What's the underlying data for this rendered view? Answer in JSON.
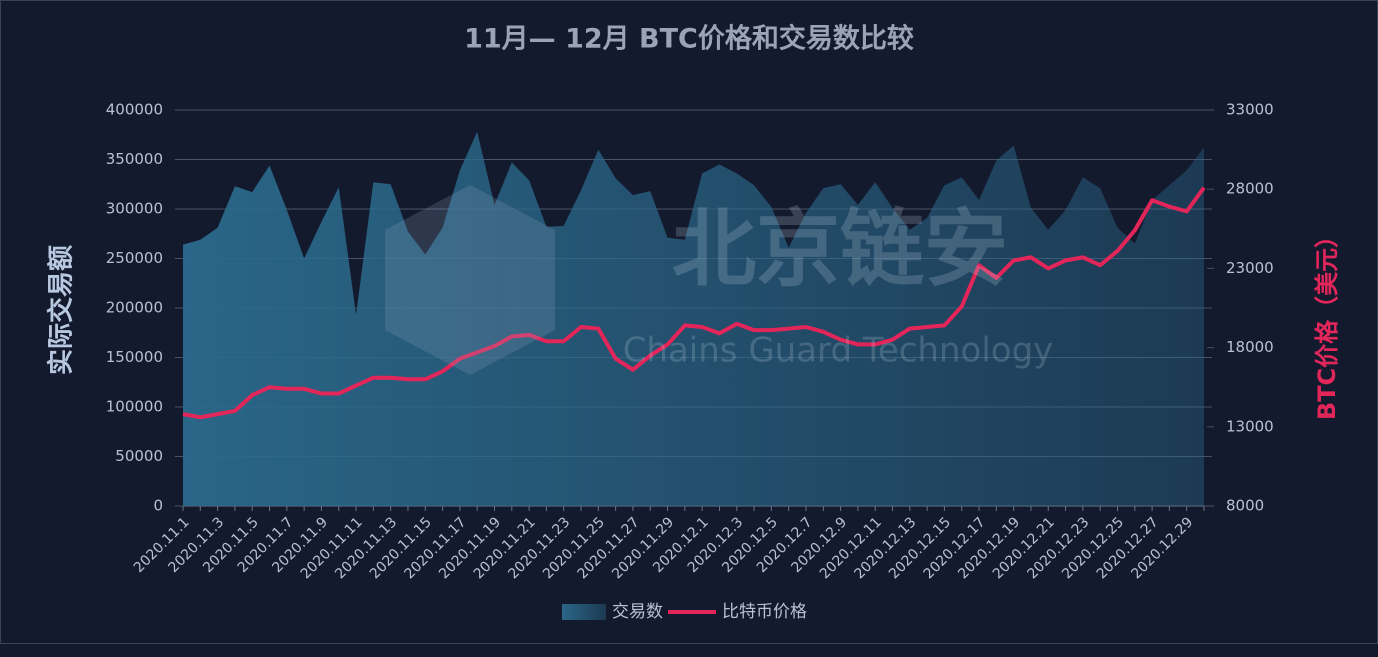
{
  "chart_data": {
    "type": "area-line",
    "title": "11月— 12月 BTC价格和交易数比较",
    "y_label": "实际交易额",
    "y2_label": "BTC价格（美元）",
    "watermark": {
      "title": "北京链安",
      "subtitle": "Chains Guard Technology"
    },
    "categories": [
      "2020.11.1",
      null,
      "2020.11.3",
      null,
      "2020.11.5",
      null,
      "2020.11.7",
      null,
      "2020.11.9",
      null,
      "2020.11.11",
      null,
      "2020.11.13",
      null,
      "2020.11.15",
      null,
      "2020.11.17",
      null,
      "2020.11.19",
      null,
      "2020.11.21",
      null,
      "2020.11.23",
      null,
      "2020.11.25",
      null,
      "2020.11.27",
      null,
      "2020.11.29",
      null,
      "2020.12.1",
      null,
      "2020.12.3",
      null,
      "2020.12.5",
      null,
      "2020.12.7",
      null,
      "2020.12.9",
      null,
      "2020.12.11",
      null,
      "2020.12.13",
      null,
      "2020.12.15",
      null,
      "2020.12.17",
      null,
      "2020.12.19",
      null,
      "2020.12.21",
      null,
      "2020.12.23",
      null,
      "2020.12.25",
      null,
      "2020.12.27",
      null,
      "2020.12.29",
      null
    ],
    "series": [
      {
        "name": "交易数",
        "color": "#2b6a8c",
        "type": "area",
        "values": [
          264000,
          269000,
          281000,
          323000,
          317000,
          344000,
          299000,
          250000,
          287000,
          322000,
          193000,
          327000,
          325000,
          277000,
          254000,
          281000,
          339000,
          378000,
          304000,
          347000,
          329000,
          282000,
          283000,
          319000,
          360000,
          331000,
          314000,
          318000,
          271000,
          269000,
          336000,
          345000,
          336000,
          324000,
          302000,
          261000,
          296000,
          321000,
          325000,
          304000,
          327000,
          301000,
          279000,
          291000,
          324000,
          332000,
          309000,
          349000,
          364000,
          301000,
          279000,
          299000,
          332000,
          321000,
          281000,
          265000,
          309000,
          324000,
          339000,
          362000
        ]
      },
      {
        "name": "比特币价格",
        "color": "#e3265a",
        "type": "line",
        "axis": "y2",
        "values": [
          13800,
          13600,
          13800,
          14000,
          15000,
          15500,
          15400,
          15400,
          15100,
          15100,
          15600,
          16100,
          16100,
          16000,
          16000,
          16500,
          17300,
          17700,
          18100,
          18700,
          18800,
          18400,
          18400,
          19300,
          19200,
          17300,
          16600,
          17500,
          18200,
          19400,
          19300,
          18900,
          19500,
          19100,
          19100,
          19200,
          19300,
          19000,
          18500,
          18200,
          18200,
          18500,
          19200,
          19300,
          19400,
          20600,
          23200,
          22400,
          23500,
          23700,
          23000,
          23500,
          23700,
          23200,
          24100,
          25400,
          27300,
          26900,
          26600,
          28100
        ]
      }
    ],
    "ylim": [
      0,
      400000
    ],
    "yticks": [
      0,
      50000,
      100000,
      150000,
      200000,
      250000,
      300000,
      350000,
      400000
    ],
    "y2lim": [
      8000,
      33000
    ],
    "y2ticks": [
      8000,
      13000,
      18000,
      23000,
      28000,
      33000
    ],
    "grid": true,
    "legend": "bottom"
  }
}
